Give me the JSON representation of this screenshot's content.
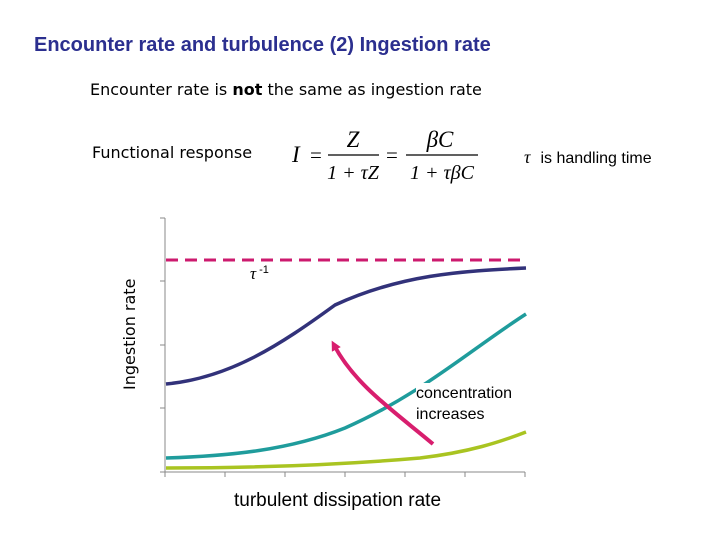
{
  "slide": {
    "title": "Encounter rate and turbulence (2) Ingestion rate",
    "subtitle_prefix": "Encounter rate is ",
    "subtitle_emphasis": "not",
    "subtitle_suffix": " the same as ingestion rate",
    "functional_response_label": "Functional response",
    "tau_symbol": "τ",
    "tau_note": "is handling time"
  },
  "formula": {
    "lhs": "I",
    "equals": "=",
    "numerator_1": "Z",
    "denominator_1": "1 + τZ",
    "numerator_2": "βC",
    "denominator_2": "1 + τβC"
  },
  "chart_data": {
    "type": "line",
    "xlabel": "turbulent dissipation rate",
    "ylabel": "Ingestion rate",
    "asymptote_label": "τ",
    "asymptote_label_exponent": "-1",
    "annotation": [
      "concentration",
      "increases"
    ],
    "grid": false,
    "series_colors": [
      "#32327a",
      "#1f9c9c",
      "#a9c421"
    ],
    "asymptote_color": "#cc1a6e",
    "arrow_color": "#d81e6e",
    "axis_color": "#888888"
  }
}
